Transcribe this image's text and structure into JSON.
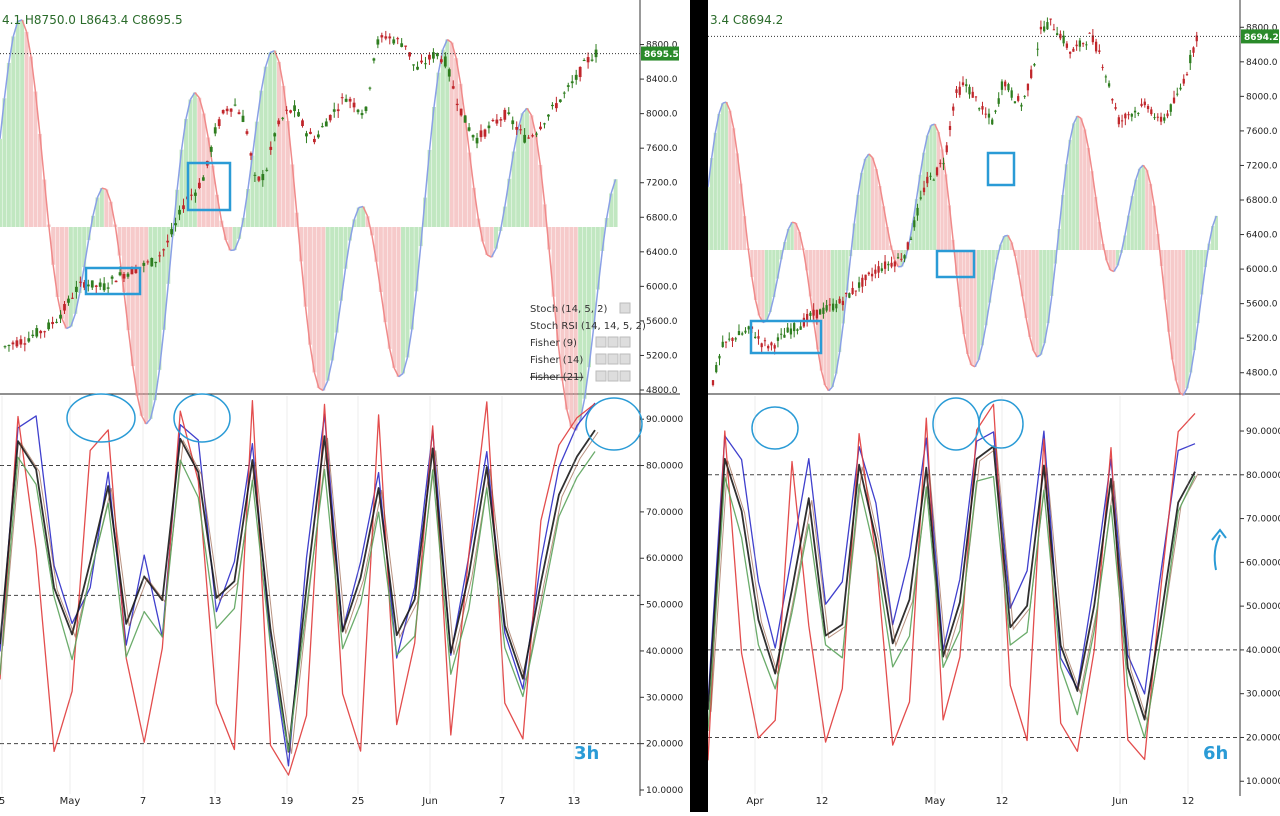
{
  "panels": [
    {
      "id": "left",
      "ohlc_line": "4.1  H8750.0  L8643.4  C8695.5",
      "current_price": "8695.5",
      "accent": "#2a8a2a",
      "price_ticks": [
        "8800.0",
        "8400.0",
        "8000.0",
        "7600.0",
        "7200.0",
        "6800.0",
        "6400.0",
        "6000.0",
        "5600.0",
        "5200.0",
        "4800.0"
      ],
      "osc_ticks": [
        "90.0000",
        "80.0000",
        "70.0000",
        "60.0000",
        "50.0000",
        "40.0000",
        "30.0000",
        "20.0000",
        "10.0000"
      ],
      "date_ticks": [
        "5",
        "May",
        "7",
        "13",
        "19",
        "25",
        "Jun",
        "7",
        "13"
      ],
      "timeframe": "3h",
      "legend": [
        {
          "label": "Stoch (14, 5, 2)",
          "icons": 1
        },
        {
          "label": "Stoch RSI (14, 14, 5, 2)",
          "icons": 0
        },
        {
          "label": "Fisher (9)",
          "icons": 3
        },
        {
          "label": "Fisher (14)",
          "icons": 3
        },
        {
          "label": "Fisher (21)",
          "icons": 3
        }
      ]
    },
    {
      "id": "right",
      "ohlc_line": "3.4  C8694.2",
      "current_price": "8694.2",
      "accent": "#2a8a2a",
      "price_ticks": [
        "8800.0",
        "8400.0",
        "8000.0",
        "7600.0",
        "7200.0",
        "6800.0",
        "6400.0",
        "6000.0",
        "5600.0",
        "5200.0",
        "4800.0"
      ],
      "osc_ticks": [
        "90.0000",
        "80.0000",
        "70.0000",
        "60.0000",
        "50.0000",
        "40.0000",
        "30.0000",
        "20.0000",
        "10.0000"
      ],
      "date_ticks": [
        "Apr",
        "12",
        "May",
        "12",
        "Jun",
        "12"
      ],
      "timeframe": "6h",
      "legend": []
    }
  ],
  "colors": {
    "up_candle": "#2e7d1f",
    "down_candle": "#c0262b",
    "fisher_up_fill": "#8fd48f",
    "fisher_down_fill": "#f0a0a0",
    "fisher_line_up": "#8aa0e6",
    "fisher_line_down": "#f08a8a",
    "stoch_blue": "#2b2bc8",
    "stoch_red": "#e03a3a",
    "stoch_black": "#1a1a1a",
    "stoch_green": "#5ba35b",
    "stoch_brown": "#8b4a2b",
    "annotation": "#2a9bd6"
  },
  "chart_data": [
    {
      "type": "line",
      "title": "",
      "panel": "left",
      "timeframe": "3h",
      "price_axis": [
        4800,
        9200
      ],
      "current_price": 8695.5,
      "x_labels": [
        "5",
        "May",
        "7",
        "13",
        "19",
        "25",
        "Jun",
        "7",
        "13"
      ],
      "price_path": [
        5300,
        5350,
        5380,
        5450,
        5500,
        5600,
        5750,
        5950,
        6050,
        6000,
        6000,
        6100,
        6150,
        6200,
        6250,
        6300,
        6450,
        6700,
        7000,
        7100,
        7300,
        7800,
        8050,
        8100,
        7900,
        7200,
        7300,
        7800,
        8000,
        8050,
        7800,
        7700,
        7900,
        8050,
        8200,
        8100,
        8000,
        8800,
        8900,
        8850,
        8800,
        8500,
        8600,
        8700,
        8600,
        8200,
        7900,
        7700,
        7800,
        7900,
        8000,
        7850,
        7700,
        7800,
        7950,
        8100,
        8250,
        8400,
        8600,
        8700
      ],
      "oscillator_axis": [
        10,
        95
      ],
      "oscillator_reference_lines": [
        80,
        52,
        20
      ],
      "series": [
        {
          "values": [
            40,
            88,
            90,
            60,
            45,
            55,
            80,
            40,
            60,
            45,
            90,
            85,
            50,
            60,
            85,
            40,
            15,
            60,
            90,
            45,
            60,
            80,
            40,
            55,
            88,
            40,
            60,
            85,
            45,
            30,
            60,
            80,
            88,
            92
          ]
        },
        {
          "values": [
            35,
            92,
            60,
            20,
            30,
            85,
            88,
            40,
            20,
            40,
            92,
            75,
            30,
            20,
            95,
            20,
            12,
            25,
            92,
            30,
            20,
            90,
            25,
            40,
            88,
            20,
            60,
            92,
            30,
            20,
            70,
            85,
            90,
            94
          ]
        },
        {
          "values": [
            40,
            85,
            80,
            55,
            45,
            60,
            75,
            45,
            55,
            50,
            85,
            80,
            50,
            55,
            80,
            45,
            18,
            55,
            85,
            45,
            55,
            75,
            45,
            50,
            82,
            40,
            55,
            80,
            45,
            35,
            55,
            75,
            82,
            88
          ]
        },
        {
          "values": [
            35,
            80,
            75,
            50,
            40,
            55,
            70,
            40,
            50,
            45,
            80,
            75,
            45,
            50,
            75,
            40,
            20,
            50,
            80,
            40,
            50,
            70,
            40,
            45,
            78,
            35,
            50,
            75,
            40,
            30,
            50,
            70,
            78,
            84
          ]
        }
      ],
      "annotations": [
        "box",
        "box",
        "ellipse",
        "ellipse",
        "ellipse"
      ]
    },
    {
      "type": "line",
      "title": "",
      "panel": "right",
      "timeframe": "6h",
      "price_axis": [
        4600,
        9000
      ],
      "current_price": 8694.2,
      "x_labels": [
        "Apr",
        "12",
        "May",
        "12",
        "Jun",
        "12"
      ],
      "price_path": [
        4700,
        5100,
        5200,
        5250,
        5300,
        5150,
        5100,
        5200,
        5300,
        5350,
        5450,
        5500,
        5550,
        5600,
        5700,
        5800,
        5900,
        6000,
        6050,
        6100,
        6200,
        6600,
        7000,
        7100,
        7300,
        8000,
        8150,
        8000,
        7800,
        7700,
        8200,
        8000,
        7900,
        8300,
        8800,
        8850,
        8700,
        8500,
        8600,
        8700,
        8500,
        8100,
        7700,
        7800,
        7850,
        7900,
        7700,
        7800,
        8000,
        8300,
        8694
      ],
      "oscillator_axis": [
        8,
        98
      ],
      "oscillator_reference_lines": [
        80,
        40,
        20
      ],
      "series": [
        {
          "values": [
            30,
            88,
            85,
            55,
            40,
            60,
            85,
            50,
            55,
            88,
            75,
            45,
            60,
            88,
            40,
            55,
            88,
            90,
            50,
            60,
            88,
            40,
            30,
            55,
            85,
            40,
            30,
            60,
            85,
            88
          ]
        },
        {
          "values": [
            15,
            90,
            40,
            20,
            25,
            85,
            45,
            20,
            30,
            90,
            60,
            20,
            30,
            92,
            25,
            40,
            92,
            95,
            30,
            20,
            90,
            25,
            15,
            40,
            85,
            20,
            15,
            55,
            88,
            94
          ]
        },
        {
          "values": [
            25,
            85,
            70,
            45,
            35,
            55,
            75,
            45,
            45,
            82,
            65,
            40,
            50,
            82,
            40,
            50,
            82,
            85,
            45,
            50,
            82,
            40,
            30,
            50,
            78,
            35,
            25,
            50,
            75,
            82
          ]
        },
        {
          "values": [
            20,
            80,
            65,
            40,
            30,
            50,
            70,
            40,
            40,
            78,
            60,
            35,
            45,
            78,
            35,
            45,
            78,
            80,
            40,
            45,
            78,
            35,
            25,
            45,
            72,
            30,
            20,
            45,
            70,
            78
          ]
        }
      ],
      "annotations": [
        "box",
        "box",
        "box",
        "ellipse",
        "ellipse",
        "ellipse",
        "arrow"
      ]
    }
  ]
}
